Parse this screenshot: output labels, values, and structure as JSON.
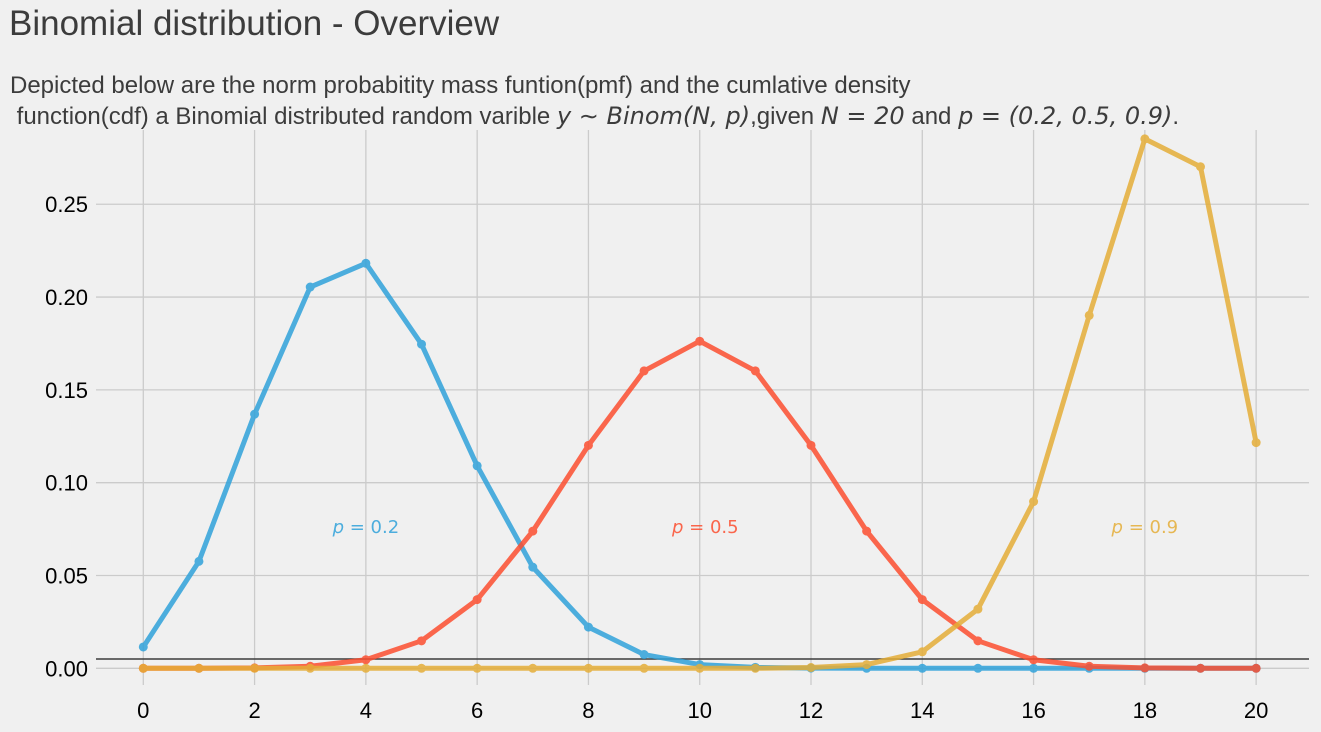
{
  "header": {
    "title": "Binomial distribution - Overview",
    "subtitle_line1": "Depicted below are the norm probabitity mass funtion(pmf) and the cumlative density",
    "subtitle_line2_prefix": " function(cdf) a Binomial distributed random varible ",
    "subtitle_math1": "y ∼ Binom(N, p)",
    "subtitle_mid1": ",given ",
    "subtitle_math2": "N = 20",
    "subtitle_mid2": " and ",
    "subtitle_math3": "p = (0.2, 0.5, 0.9)",
    "subtitle_end": "."
  },
  "chart_data": {
    "type": "line",
    "title": "Binomial distribution - Overview",
    "xlabel": "",
    "ylabel": "",
    "xlim": [
      -0.85,
      20.95
    ],
    "ylim": [
      -0.009,
      0.29
    ],
    "x_ticks": [
      0,
      2,
      4,
      6,
      8,
      10,
      12,
      14,
      16,
      18,
      20
    ],
    "x_tick_labels": [
      "0",
      "2",
      "4",
      "6",
      "8",
      "10",
      "12",
      "14",
      "16",
      "18",
      "20"
    ],
    "y_ticks": [
      0.0,
      0.05,
      0.1,
      0.15,
      0.2,
      0.25
    ],
    "y_tick_labels": [
      "0.00",
      "0.05",
      "0.10",
      "0.15",
      "0.20",
      "0.25"
    ],
    "grid": true,
    "baseline_y": 0.005,
    "x": [
      0,
      1,
      2,
      3,
      4,
      5,
      6,
      7,
      8,
      9,
      10,
      11,
      12,
      13,
      14,
      15,
      16,
      17,
      18,
      19,
      20
    ],
    "series": [
      {
        "color": "#30a2da",
        "label_text": "p = 0.2",
        "label_pos": [
          4.0,
          0.075
        ],
        "values": [
          0.0115,
          0.0576,
          0.1369,
          0.2054,
          0.2182,
          0.1746,
          0.1091,
          0.0545,
          0.0222,
          0.0074,
          0.002,
          0.0005,
          0.0001,
          0.0,
          0.0,
          0.0,
          0.0,
          0.0,
          0.0,
          0.0,
          0.0
        ]
      },
      {
        "color": "#fc4f30",
        "label_text": "p = 0.5",
        "label_pos": [
          10.1,
          0.075
        ],
        "values": [
          0.0,
          0.0,
          0.0002,
          0.0011,
          0.0046,
          0.0148,
          0.037,
          0.0739,
          0.1201,
          0.1602,
          0.1762,
          0.1602,
          0.1201,
          0.0739,
          0.037,
          0.0148,
          0.0046,
          0.0011,
          0.0002,
          0.0,
          0.0
        ]
      },
      {
        "color": "#e5ae38",
        "label_text": "p = 0.9",
        "label_pos": [
          18.0,
          0.075
        ],
        "values": [
          0.0,
          0.0,
          0.0,
          0.0,
          0.0,
          0.0,
          0.0,
          0.0,
          0.0,
          0.0,
          0.0,
          0.0,
          0.0004,
          0.002,
          0.0089,
          0.0319,
          0.0898,
          0.1901,
          0.2852,
          0.2702,
          0.1216
        ]
      }
    ]
  }
}
